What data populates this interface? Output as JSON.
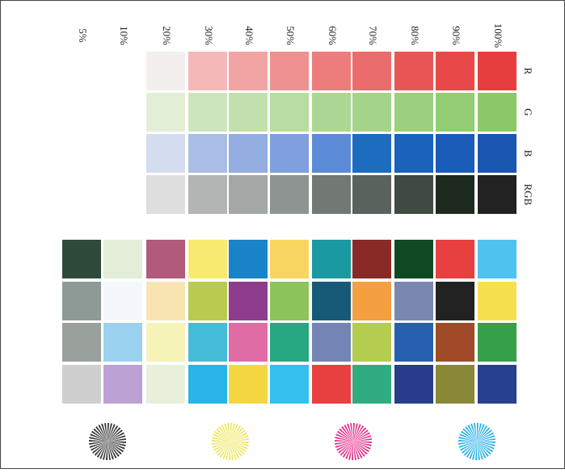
{
  "column_labels": [
    "5%",
    "10%",
    "20%",
    "30%",
    "40%",
    "50%",
    "60%",
    "70%",
    "80%",
    "90%",
    "100%"
  ],
  "row_labels": [
    "R",
    "G",
    "B",
    "RGB"
  ]
}
